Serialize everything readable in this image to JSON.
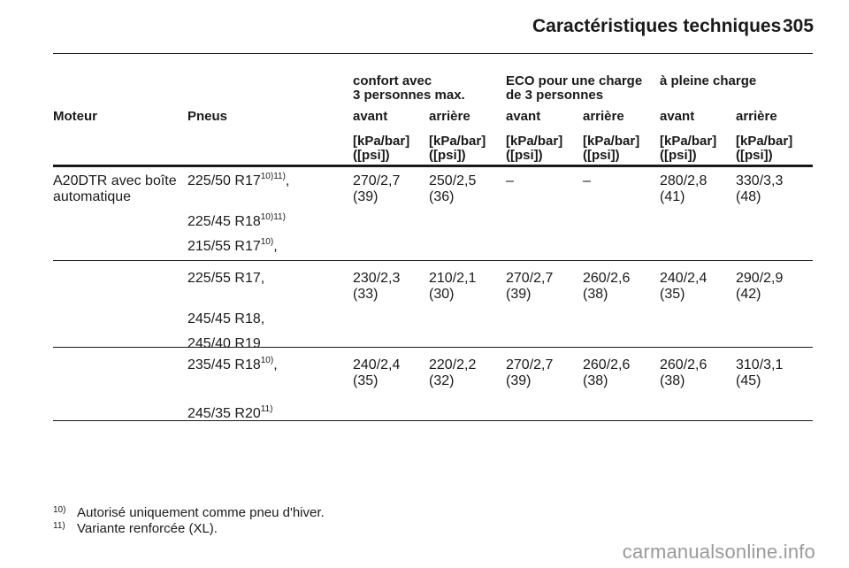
{
  "header": {
    "title": "Caractéristiques techniques",
    "page_number": "305"
  },
  "table": {
    "group_headers": {
      "confort": [
        "confort avec",
        "3 personnes max."
      ],
      "eco": [
        "ECO pour une charge",
        "de 3 personnes"
      ],
      "pleine": [
        "à pleine charge"
      ]
    },
    "col_headers": {
      "moteur": "Moteur",
      "pneus": "Pneus",
      "avant": "avant",
      "arriere": "arrière"
    },
    "unit": [
      "[kPa/bar]",
      "([psi])"
    ],
    "moteur_value": [
      "A20DTR avec boîte",
      "automatique"
    ],
    "groups": [
      {
        "tires": [
          {
            "name": "225/50 R17",
            "sup": "10)11)",
            "suffix": ","
          },
          {
            "name": "225/45 R18",
            "sup": "10)11)",
            "suffix": ""
          },
          {
            "name": "215/55 R17",
            "sup": "10)",
            "suffix": ","
          }
        ],
        "values": [
          [
            "270/2,7",
            "(39)"
          ],
          [
            "250/2,5",
            "(36)"
          ],
          [
            "–",
            ""
          ],
          [
            "–",
            ""
          ],
          [
            "280/2,8",
            "(41)"
          ],
          [
            "330/3,3",
            "(48)"
          ]
        ]
      },
      {
        "tires": [
          {
            "name": "225/55 R17",
            "sup": "",
            "suffix": ","
          },
          {
            "name": "245/45 R18",
            "sup": "",
            "suffix": ","
          },
          {
            "name": "245/40 R19",
            "sup": "",
            "suffix": ""
          }
        ],
        "values": [
          [
            "230/2,3",
            "(33)"
          ],
          [
            "210/2,1",
            "(30)"
          ],
          [
            "270/2,7",
            "(39)"
          ],
          [
            "260/2,6",
            "(38)"
          ],
          [
            "240/2,4",
            "(35)"
          ],
          [
            "290/2,9",
            "(42)"
          ]
        ]
      },
      {
        "tires": [
          {
            "name": "235/45 R18",
            "sup": "10)",
            "suffix": ","
          },
          {
            "name": "245/35 R20",
            "sup": "11)",
            "suffix": ""
          }
        ],
        "values": [
          [
            "240/2,4",
            "(35)"
          ],
          [
            "220/2,2",
            "(32)"
          ],
          [
            "270/2,7",
            "(39)"
          ],
          [
            "260/2,6",
            "(38)"
          ],
          [
            "260/2,6",
            "(38)"
          ],
          [
            "310/3,1",
            "(45)"
          ]
        ]
      }
    ]
  },
  "footnotes": [
    {
      "mark": "10)",
      "text": "Autorisé uniquement comme pneu d'hiver."
    },
    {
      "mark": "11)",
      "text": "Variante renforcée (XL)."
    }
  ],
  "watermark": "carmanualsonline.info"
}
